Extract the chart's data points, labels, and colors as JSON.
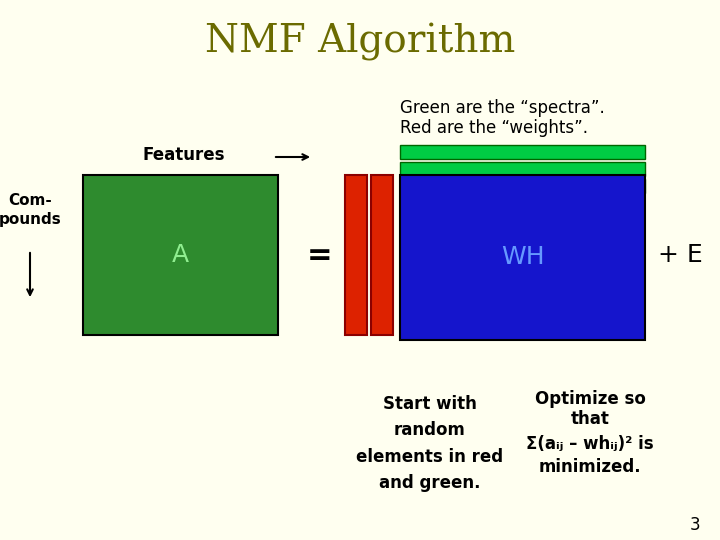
{
  "bg_color": "#FFFFF0",
  "title": "NMF Algorithm",
  "title_color": "#6B6B00",
  "title_fontsize": 28,
  "subtitle_line1": "Green are the “spectra”.",
  "subtitle_line2": "Red are the “weights”.",
  "green_color": "#2E8B2E",
  "red_color": "#DD2200",
  "blue_color": "#1515CC",
  "bright_green_color": "#00CC44",
  "dark_line_color": "#006600",
  "features_label": "Features",
  "compounds_label": "Com-\npounds",
  "A_label": "A",
  "A_fontsize": 18,
  "WH_label": "WH",
  "WH_fontsize": 18,
  "WH_color": "#000080",
  "plus_E_label": "+ E",
  "equals_label": "=",
  "bottom_text1": "Start with\nrandom\nelements in red\nand green.",
  "bottom_text2_line1": "Optimize so",
  "bottom_text2_line2": "that",
  "bottom_text2_line3": "Σ(aᵢⱼ – whᵢⱼ)² is",
  "bottom_text2_line4": "minimized.",
  "page_num": "3"
}
